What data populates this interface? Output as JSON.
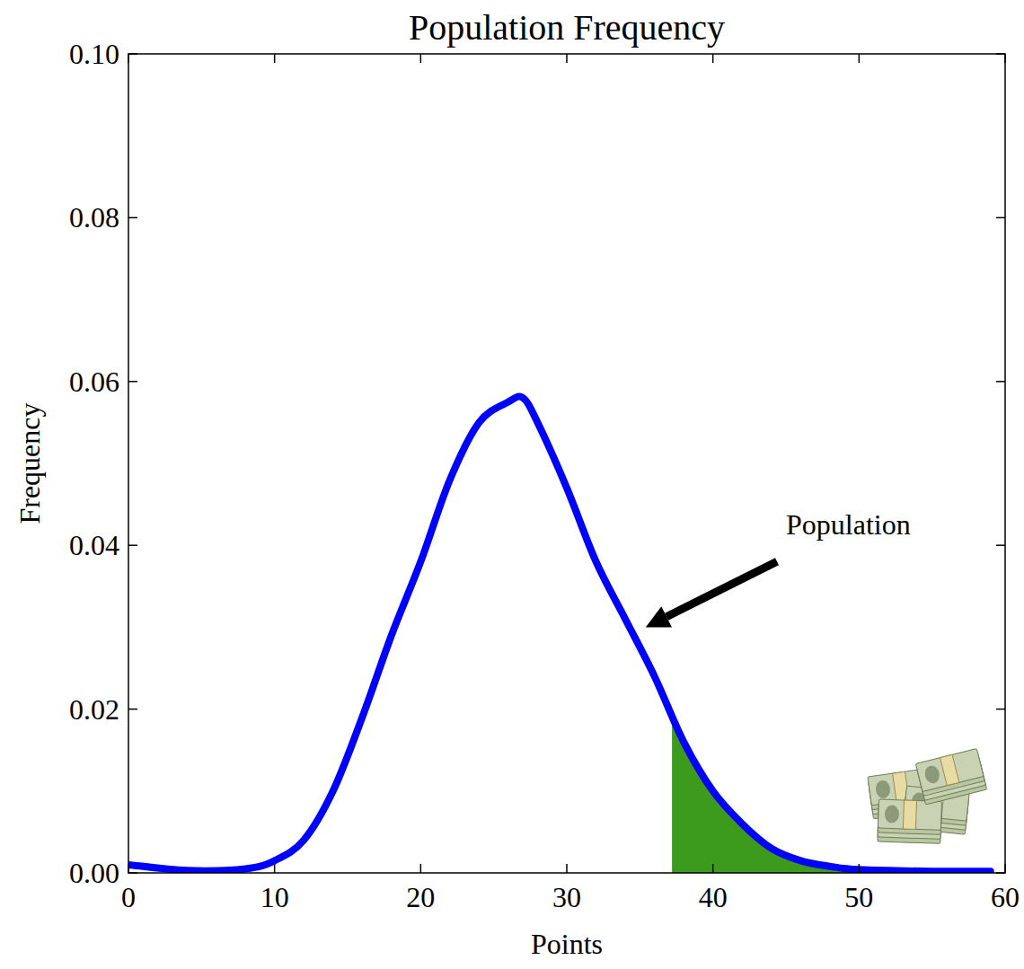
{
  "chart_data": {
    "type": "line",
    "title": "Population Frequency",
    "x_label": "Points",
    "y_label": "Frequency",
    "series": [
      {
        "name": "Population",
        "color": "#0000ff",
        "x": [
          0,
          4,
          8,
          10,
          12,
          14,
          16,
          18,
          20,
          22,
          24,
          26,
          27,
          28,
          30,
          32,
          34,
          36,
          38,
          40,
          42,
          44,
          46,
          48,
          50,
          55,
          59
        ],
        "values": [
          0.001,
          0.0003,
          0.0005,
          0.0015,
          0.004,
          0.01,
          0.019,
          0.029,
          0.038,
          0.048,
          0.055,
          0.0575,
          0.058,
          0.055,
          0.047,
          0.038,
          0.031,
          0.024,
          0.016,
          0.01,
          0.006,
          0.003,
          0.0015,
          0.0008,
          0.0004,
          0.0002,
          0.0002
        ]
      }
    ],
    "shaded_region": {
      "from": 37.2,
      "color": "#3c9b1c"
    },
    "annotations": [
      {
        "text": "Population",
        "x": 45,
        "y": 0.0413,
        "xy": [
          35.4,
          0.03
        ]
      }
    ],
    "xlim": [
      0,
      60
    ],
    "xticks": [
      0,
      10,
      20,
      30,
      40,
      50,
      60
    ],
    "ylim": [
      0,
      0.1
    ],
    "yticks": [
      {
        "value": 0,
        "label": "0.00"
      },
      {
        "value": 0.02,
        "label": "0.02"
      },
      {
        "value": 0.04,
        "label": "0.04"
      },
      {
        "value": 0.06,
        "label": "0.06"
      },
      {
        "value": 0.08,
        "label": "0.08"
      },
      {
        "value": 0.1,
        "label": "0.10"
      }
    ],
    "grid": false
  }
}
